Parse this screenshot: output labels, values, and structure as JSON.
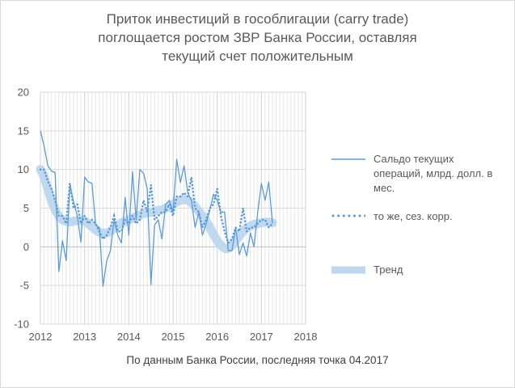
{
  "title_lines": [
    "Приток инвестиций в гособлигации (carry trade)",
    "поглощается ростом ЗВР Банка России, оставляя",
    "текущий счет положительным"
  ],
  "source_note": "По данным Банка России, последняя точка 04.2017",
  "chart_data": {
    "type": "line",
    "title": "Приток инвестиций в гособлигации (carry trade) поглощается ростом ЗВР Банка России, оставляя текущий счет положительным",
    "xlabel": "",
    "ylabel": "",
    "xlim": [
      2012,
      2018
    ],
    "ylim": [
      -10,
      20
    ],
    "x_ticks": [
      "2012",
      "2013",
      "2014",
      "2015",
      "2016",
      "2017",
      "2018"
    ],
    "y_ticks": [
      "20",
      "15",
      "10",
      "5",
      "0",
      "-5",
      "-10"
    ],
    "grid": "vertical monthly, horizontal at y ticks",
    "legend_position": "right",
    "series": [
      {
        "name": "Сальдо текущих операций, млрд. долл. в мес.",
        "style": "solid",
        "color": "#5B9BD5",
        "x": [
          "2012-01",
          "2012-02",
          "2012-03",
          "2012-04",
          "2012-05",
          "2012-06",
          "2012-07",
          "2012-08",
          "2012-09",
          "2012-10",
          "2012-11",
          "2012-12",
          "2013-01",
          "2013-02",
          "2013-03",
          "2013-04",
          "2013-05",
          "2013-06",
          "2013-07",
          "2013-08",
          "2013-09",
          "2013-10",
          "2013-11",
          "2013-12",
          "2014-01",
          "2014-02",
          "2014-03",
          "2014-04",
          "2014-05",
          "2014-06",
          "2014-07",
          "2014-08",
          "2014-09",
          "2014-10",
          "2014-11",
          "2014-12",
          "2015-01",
          "2015-02",
          "2015-03",
          "2015-04",
          "2015-05",
          "2015-06",
          "2015-07",
          "2015-08",
          "2015-09",
          "2015-10",
          "2015-11",
          "2015-12",
          "2016-01",
          "2016-02",
          "2016-03",
          "2016-04",
          "2016-05",
          "2016-06",
          "2016-07",
          "2016-08",
          "2016-09",
          "2016-10",
          "2016-11",
          "2016-12",
          "2017-01",
          "2017-02",
          "2017-03",
          "2017-04"
        ],
        "y": [
          15.0,
          13.0,
          10.5,
          9.8,
          9.6,
          -3.2,
          0.8,
          -1.8,
          8.0,
          5.8,
          4.0,
          0.6,
          9.0,
          8.4,
          8.2,
          2.8,
          2.5,
          -5.1,
          -1.8,
          -0.5,
          3.5,
          1.5,
          0.5,
          6.4,
          1.5,
          9.7,
          3.5,
          10.0,
          9.5,
          7.5,
          -4.9,
          2.8,
          3.5,
          1.0,
          5.5,
          6.0,
          4.5,
          11.3,
          8.3,
          10.5,
          7.0,
          6.0,
          2.5,
          4.5,
          1.5,
          3.0,
          4.8,
          6.8,
          6.0,
          4.5,
          4.5,
          -0.5,
          -0.5,
          2.5,
          -1.0,
          0.5,
          -1.2,
          1.8,
          0.0,
          4.5,
          8.2,
          6.0,
          8.4,
          3.0
        ]
      },
      {
        "name": "то же, сез. корр.",
        "style": "dotted",
        "color": "#5B9BD5",
        "x": [
          "2012-01",
          "2012-02",
          "2012-03",
          "2012-04",
          "2012-05",
          "2012-06",
          "2012-07",
          "2012-08",
          "2012-09",
          "2012-10",
          "2012-11",
          "2012-12",
          "2013-01",
          "2013-02",
          "2013-03",
          "2013-04",
          "2013-05",
          "2013-06",
          "2013-07",
          "2013-08",
          "2013-09",
          "2013-10",
          "2013-11",
          "2013-12",
          "2014-01",
          "2014-02",
          "2014-03",
          "2014-04",
          "2014-05",
          "2014-06",
          "2014-07",
          "2014-08",
          "2014-09",
          "2014-10",
          "2014-11",
          "2014-12",
          "2015-01",
          "2015-02",
          "2015-03",
          "2015-04",
          "2015-05",
          "2015-06",
          "2015-07",
          "2015-08",
          "2015-09",
          "2015-10",
          "2015-11",
          "2015-12",
          "2016-01",
          "2016-02",
          "2016-03",
          "2016-04",
          "2016-05",
          "2016-06",
          "2016-07",
          "2016-08",
          "2016-09",
          "2016-10",
          "2016-11",
          "2016-12",
          "2017-01",
          "2017-02",
          "2017-03",
          "2017-04"
        ],
        "y": [
          10.0,
          10.0,
          8.5,
          7.5,
          6.0,
          4.0,
          4.0,
          3.0,
          8.2,
          5.0,
          5.5,
          3.0,
          4.0,
          3.0,
          3.5,
          3.0,
          2.0,
          1.0,
          1.5,
          2.5,
          4.0,
          2.0,
          2.0,
          3.5,
          3.0,
          4.0,
          3.0,
          3.5,
          6.0,
          4.5,
          8.0,
          3.5,
          4.0,
          4.5,
          4.5,
          5.5,
          4.0,
          6.5,
          6.5,
          7.0,
          6.5,
          9.0,
          5.0,
          4.5,
          2.5,
          3.5,
          5.0,
          5.5,
          7.5,
          4.0,
          2.0,
          0.5,
          1.0,
          2.5,
          2.0,
          5.0,
          2.0,
          2.5,
          2.5,
          3.0,
          3.5,
          3.5,
          2.5,
          3.0
        ]
      },
      {
        "name": "Тренд",
        "style": "thick-band",
        "color": "#BDD7EE",
        "x": [
          "2012-01",
          "2012-02",
          "2012-03",
          "2012-04",
          "2012-05",
          "2012-06",
          "2012-07",
          "2012-08",
          "2012-09",
          "2012-10",
          "2012-11",
          "2012-12",
          "2013-01",
          "2013-02",
          "2013-03",
          "2013-04",
          "2013-05",
          "2013-06",
          "2013-07",
          "2013-08",
          "2013-09",
          "2013-10",
          "2013-11",
          "2013-12",
          "2014-01",
          "2014-02",
          "2014-03",
          "2014-04",
          "2014-05",
          "2014-06",
          "2014-07",
          "2014-08",
          "2014-09",
          "2014-10",
          "2014-11",
          "2014-12",
          "2015-01",
          "2015-02",
          "2015-03",
          "2015-04",
          "2015-05",
          "2015-06",
          "2015-07",
          "2015-08",
          "2015-09",
          "2015-10",
          "2015-11",
          "2015-12",
          "2016-01",
          "2016-02",
          "2016-03",
          "2016-04",
          "2016-05",
          "2016-06",
          "2016-07",
          "2016-08",
          "2016-09",
          "2016-10",
          "2016-11",
          "2016-12",
          "2017-01",
          "2017-02",
          "2017-03",
          "2017-04"
        ],
        "y": [
          10.0,
          9.0,
          7.5,
          6.0,
          4.8,
          4.0,
          3.5,
          3.3,
          3.2,
          3.3,
          3.4,
          3.4,
          3.3,
          3.0,
          2.6,
          2.2,
          1.9,
          1.8,
          1.8,
          2.0,
          2.4,
          2.8,
          3.1,
          3.3,
          3.5,
          3.7,
          3.9,
          4.1,
          4.3,
          4.4,
          4.5,
          4.6,
          4.7,
          4.8,
          5.0,
          5.2,
          5.5,
          5.8,
          6.0,
          6.1,
          6.0,
          5.7,
          5.2,
          4.6,
          4.0,
          3.3,
          2.5,
          1.6,
          0.8,
          0.2,
          -0.2,
          -0.2,
          0.2,
          0.8,
          1.4,
          2.0,
          2.4,
          2.7,
          2.9,
          3.0,
          3.1,
          3.2,
          3.2,
          3.1
        ]
      }
    ]
  }
}
